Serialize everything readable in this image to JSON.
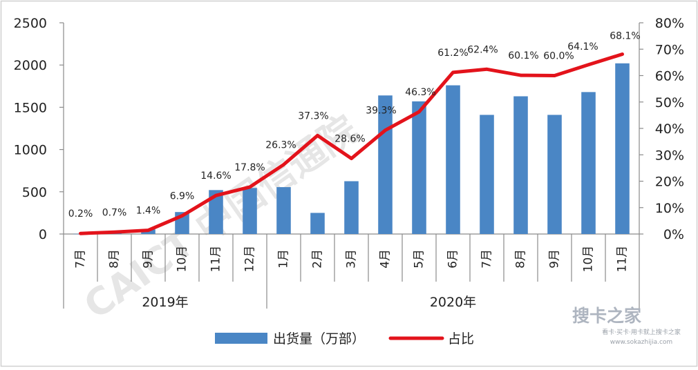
{
  "chart_data": {
    "type": "bar+line",
    "categories": [
      "7月",
      "8月",
      "9月",
      "10月",
      "11月",
      "12月",
      "1月",
      "2月",
      "3月",
      "4月",
      "5月",
      "6月",
      "7月",
      "8月",
      "9月",
      "10月",
      "11月"
    ],
    "year_groups": [
      {
        "label": "2019年",
        "start": 0,
        "end": 5
      },
      {
        "label": "2020年",
        "start": 6,
        "end": 16
      }
    ],
    "series": [
      {
        "name": "出货量（万部）",
        "type": "bar",
        "axis": "left",
        "values": [
          2,
          11,
          55,
          260,
          520,
          545,
          555,
          250,
          625,
          1640,
          1570,
          1760,
          1410,
          1630,
          1410,
          1680,
          2020
        ]
      },
      {
        "name": "占比",
        "type": "line",
        "axis": "right",
        "values": [
          0.2,
          0.7,
          1.4,
          6.9,
          14.6,
          17.8,
          26.3,
          37.3,
          28.6,
          39.3,
          46.3,
          61.2,
          62.4,
          60.1,
          60.0,
          64.1,
          68.1
        ],
        "labels": [
          "0.2%",
          "0.7%",
          "1.4%",
          "6.9%",
          "14.6%",
          "17.8%",
          "26.3%",
          "37.3%",
          "28.6%",
          "39.3%",
          "46.3%",
          "61.2%",
          "62.4%",
          "60.1%",
          "60.0%",
          "64.1%",
          "68.1%"
        ]
      }
    ],
    "y_left": {
      "min": 0,
      "max": 2500,
      "ticks": [
        "0",
        "500",
        "1000",
        "1500",
        "2000",
        "2500"
      ]
    },
    "y_right": {
      "min": 0,
      "max": 80,
      "ticks": [
        "0%",
        "10%",
        "20%",
        "30%",
        "40%",
        "50%",
        "60%",
        "70%",
        "80%"
      ]
    },
    "colors": {
      "bar": "#4a86c5",
      "line": "#e3131b"
    },
    "grid": false,
    "legend_position": "bottom-center"
  },
  "watermark": {
    "text": "CAICT 中国信通院"
  },
  "logo": {
    "title": "搜卡之家",
    "subtitle": "看卡·买卡·用卡就上搜卡之家",
    "url": "www.sokazhijia.com"
  }
}
